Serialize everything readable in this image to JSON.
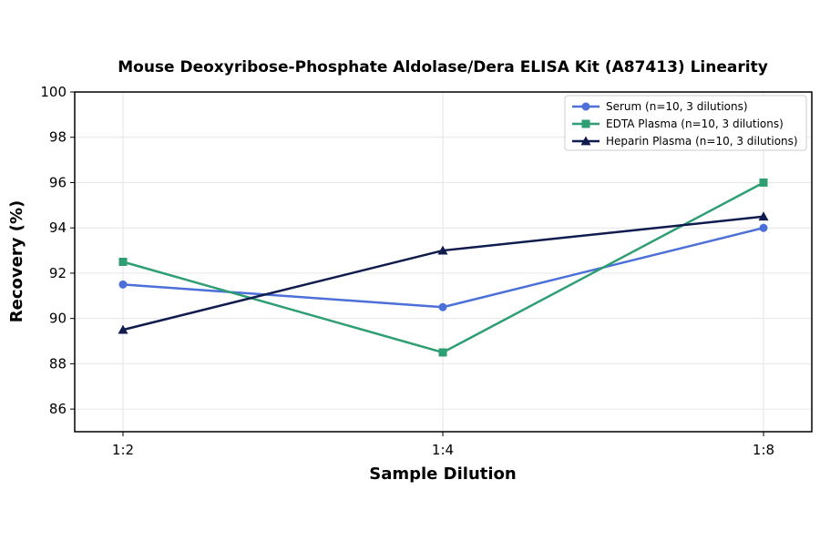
{
  "chart_data": {
    "type": "line",
    "title": "Mouse Deoxyribose-Phosphate Aldolase/Dera ELISA Kit (A87413) Linearity",
    "xlabel": "Sample Dilution",
    "ylabel": "Recovery (%)",
    "categories": [
      "1:2",
      "1:4",
      "1:8"
    ],
    "ylim": [
      85,
      100
    ],
    "yticks": [
      86,
      88,
      90,
      92,
      94,
      96,
      98,
      100
    ],
    "grid": true,
    "legend_position": "top-right",
    "series": [
      {
        "name": "Serum (n=10, 3 dilutions)",
        "values": [
          91.5,
          90.5,
          94.0
        ],
        "color": "#4C6FD8",
        "marker": "circle"
      },
      {
        "name": "EDTA Plasma (n=10, 3 dilutions)",
        "values": [
          92.5,
          88.5,
          96.0
        ],
        "color": "#2E9E73",
        "marker": "square"
      },
      {
        "name": "Heparin Plasma (n=10, 3 dilutions)",
        "values": [
          89.5,
          93.0,
          94.5
        ],
        "color": "#0F1C4D",
        "marker": "triangle"
      }
    ]
  }
}
